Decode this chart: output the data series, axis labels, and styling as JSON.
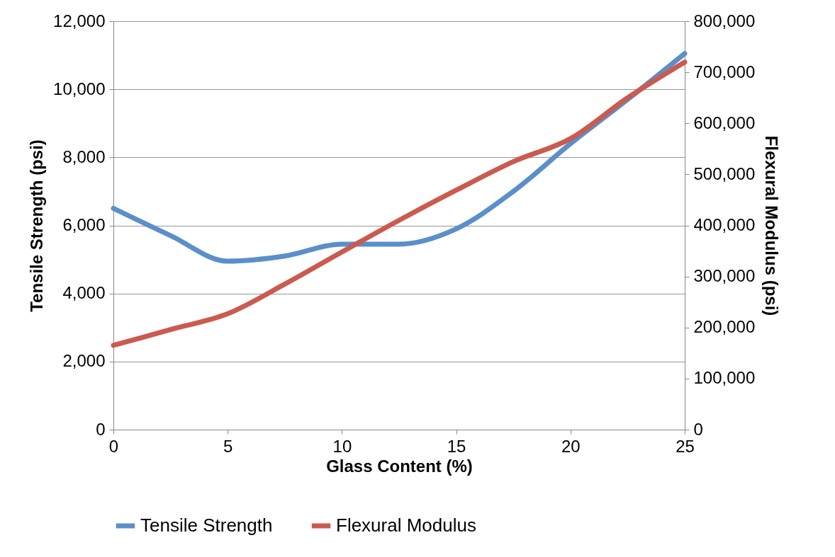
{
  "chart_data": {
    "type": "line",
    "xlabel": "Glass Content (%)",
    "ylabel": "Tensile Strength (psi)",
    "y2label": "Flexural Modulus (psi)",
    "x": [
      0,
      2.5,
      5,
      7.5,
      10,
      12.5,
      15,
      17.5,
      20,
      22.5,
      25
    ],
    "series": [
      {
        "name": "Tensile Strength",
        "color": "#5b8fc9",
        "values": [
          6500,
          5700,
          4950,
          5100,
          5450,
          5450,
          5900,
          7000,
          8400,
          9700,
          11050
        ]
      },
      {
        "name": "Flexural Modulus",
        "color": "#cb5a4f",
        "axis": "y2",
        "values": [
          165000,
          196000,
          227000,
          285000,
          348000,
          410000,
          469000,
          525000,
          570000,
          650000,
          720000
        ]
      }
    ],
    "xlim": [
      0,
      25
    ],
    "xticks": [
      0,
      5,
      10,
      15,
      20,
      25
    ],
    "ylim": [
      0,
      12000
    ],
    "yticks": [
      0,
      {
        "value": 2000,
        "label": "2,000"
      },
      {
        "value": 4000,
        "label": "4,000"
      },
      {
        "value": 6000,
        "label": "6,000"
      },
      {
        "value": 8000,
        "label": "8,000"
      },
      {
        "value": 10000,
        "label": "10,000"
      },
      {
        "value": 12000,
        "label": "12,000"
      }
    ],
    "y2lim": [
      0,
      800000
    ],
    "y2ticks": [
      0,
      {
        "value": 100000,
        "label": "100,000"
      },
      {
        "value": 200000,
        "label": "200,000"
      },
      {
        "value": 300000,
        "label": "300,000"
      },
      {
        "value": 400000,
        "label": "400,000"
      },
      {
        "value": 500000,
        "label": "500,000"
      },
      {
        "value": 600000,
        "label": "600,000"
      },
      {
        "value": 700000,
        "label": "700,000"
      },
      {
        "value": 800000,
        "label": "800,000"
      }
    ],
    "grid": "y",
    "legend": "bottom",
    "marker": "none",
    "line_style": "solid"
  }
}
